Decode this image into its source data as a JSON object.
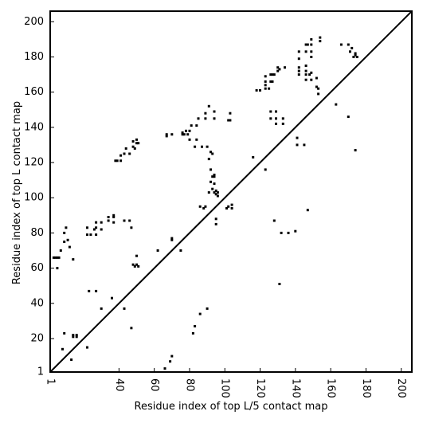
{
  "chart_data": {
    "type": "scatter",
    "xlabel": "Residue index of top L/5 contact map",
    "ylabel": "Residue index of top L contact map",
    "xlim": [
      1,
      206
    ],
    "ylim": [
      1,
      206
    ],
    "xticks": [
      1,
      40,
      60,
      80,
      100,
      120,
      140,
      160,
      180,
      200
    ],
    "yticks": [
      1,
      20,
      40,
      60,
      80,
      100,
      120,
      140,
      160,
      180,
      200
    ],
    "xtick_labels": [
      "1",
      "40",
      "60",
      "80",
      "100",
      "120",
      "140",
      "160",
      "180",
      "200"
    ],
    "ytick_labels": [
      "1",
      "20",
      "40",
      "60",
      "80",
      "100",
      "120",
      "140",
      "160",
      "180",
      "200"
    ],
    "diagonal": true,
    "grid": false,
    "marker_color": "#000000",
    "upper_triangle_points": [
      [
        3,
        66
      ],
      [
        4,
        66
      ],
      [
        5,
        66
      ],
      [
        6,
        66
      ],
      [
        7,
        70
      ],
      [
        9,
        75
      ],
      [
        9,
        80
      ],
      [
        10,
        83
      ],
      [
        11,
        76
      ],
      [
        12,
        72
      ],
      [
        14,
        65
      ],
      [
        22,
        79
      ],
      [
        22,
        83
      ],
      [
        24,
        79
      ],
      [
        26,
        82
      ],
      [
        27,
        83
      ],
      [
        27,
        86
      ],
      [
        27,
        79
      ],
      [
        30,
        86
      ],
      [
        30,
        82
      ],
      [
        34,
        87
      ],
      [
        34,
        89
      ],
      [
        37,
        89
      ],
      [
        37,
        86
      ],
      [
        37,
        90
      ],
      [
        38,
        121
      ],
      [
        39,
        121
      ],
      [
        41,
        121
      ],
      [
        41,
        124
      ],
      [
        43,
        87
      ],
      [
        43,
        125
      ],
      [
        44,
        128
      ],
      [
        46,
        87
      ],
      [
        46,
        125
      ],
      [
        47,
        83
      ],
      [
        48,
        62
      ],
      [
        48,
        129
      ],
      [
        48,
        132
      ],
      [
        49,
        128
      ],
      [
        49,
        61
      ],
      [
        50,
        62
      ],
      [
        50,
        131
      ],
      [
        50,
        133
      ],
      [
        50,
        67
      ],
      [
        51,
        61
      ],
      [
        51,
        131
      ],
      [
        62,
        70
      ],
      [
        67,
        135
      ],
      [
        67,
        136
      ],
      [
        70,
        77
      ],
      [
        70,
        76
      ],
      [
        70,
        136
      ],
      [
        75,
        70
      ],
      [
        76,
        136
      ],
      [
        76,
        137
      ],
      [
        77,
        136
      ],
      [
        78,
        138
      ],
      [
        79,
        136
      ],
      [
        80,
        133
      ],
      [
        80,
        138
      ],
      [
        81,
        141
      ],
      [
        83,
        129
      ],
      [
        84,
        133
      ],
      [
        84,
        141
      ],
      [
        85,
        145
      ],
      [
        86,
        95
      ],
      [
        87,
        129
      ],
      [
        88,
        94
      ],
      [
        89,
        95
      ],
      [
        89,
        145
      ],
      [
        89,
        148
      ],
      [
        90,
        129
      ],
      [
        91,
        122
      ],
      [
        91,
        103
      ],
      [
        91,
        152
      ],
      [
        92,
        109
      ],
      [
        92,
        116
      ],
      [
        92,
        126
      ],
      [
        93,
        112
      ],
      [
        93,
        105
      ],
      [
        93,
        125
      ],
      [
        94,
        103
      ],
      [
        94,
        108
      ],
      [
        94,
        112
      ],
      [
        94,
        113
      ],
      [
        94,
        145
      ],
      [
        94,
        149
      ],
      [
        95,
        104
      ],
      [
        95,
        102
      ],
      [
        95,
        88
      ],
      [
        95,
        85
      ],
      [
        96,
        101
      ],
      [
        96,
        103
      ],
      [
        101,
        94
      ],
      [
        102,
        95
      ],
      [
        102,
        144
      ],
      [
        103,
        144
      ],
      [
        103,
        148
      ],
      [
        104,
        94
      ],
      [
        104,
        96
      ],
      [
        116,
        123
      ],
      [
        118,
        161
      ],
      [
        120,
        161
      ],
      [
        123,
        116
      ],
      [
        123,
        162
      ],
      [
        123,
        164
      ],
      [
        123,
        166
      ],
      [
        123,
        169
      ],
      [
        125,
        162
      ],
      [
        126,
        145
      ],
      [
        126,
        149
      ],
      [
        126,
        166
      ],
      [
        126,
        170
      ],
      [
        127,
        166
      ],
      [
        127,
        170
      ],
      [
        128,
        170
      ],
      [
        128,
        87
      ],
      [
        129,
        142
      ],
      [
        129,
        145
      ],
      [
        129,
        149
      ],
      [
        130,
        172
      ],
      [
        130,
        174
      ],
      [
        131,
        51
      ],
      [
        131,
        173
      ],
      [
        132,
        80
      ],
      [
        133,
        142
      ],
      [
        133,
        145
      ],
      [
        134,
        174
      ],
      [
        136,
        80
      ],
      [
        140,
        81
      ],
      [
        141,
        134
      ],
      [
        141,
        130
      ],
      [
        142,
        170
      ],
      [
        142,
        172
      ],
      [
        142,
        174
      ],
      [
        142,
        179
      ],
      [
        142,
        183
      ],
      [
        145,
        130
      ],
      [
        146,
        167
      ],
      [
        146,
        170
      ],
      [
        146,
        172
      ],
      [
        146,
        175
      ],
      [
        146,
        183
      ],
      [
        146,
        187
      ],
      [
        147,
        93
      ],
      [
        147,
        187
      ],
      [
        148,
        170
      ],
      [
        149,
        167
      ],
      [
        149,
        171
      ],
      [
        149,
        180
      ],
      [
        149,
        183
      ],
      [
        149,
        187
      ],
      [
        149,
        190
      ],
      [
        152,
        168
      ],
      [
        152,
        163
      ],
      [
        153,
        159
      ],
      [
        153,
        162
      ],
      [
        154,
        189
      ],
      [
        154,
        191
      ],
      [
        163,
        153
      ],
      [
        166,
        187
      ],
      [
        170,
        187
      ],
      [
        170,
        146
      ],
      [
        171,
        183
      ],
      [
        172,
        185
      ],
      [
        173,
        180
      ],
      [
        174,
        127
      ],
      [
        174,
        181
      ],
      [
        174,
        182
      ],
      [
        175,
        180
      ]
    ],
    "lower_triangle_points": [
      [
        5,
        60
      ],
      [
        8,
        14
      ],
      [
        9,
        23
      ],
      [
        13,
        8
      ],
      [
        14,
        22
      ],
      [
        14,
        21
      ],
      [
        16,
        22
      ],
      [
        16,
        21
      ],
      [
        22,
        15
      ],
      [
        23,
        47
      ],
      [
        27,
        47
      ],
      [
        30,
        37
      ],
      [
        36,
        43
      ],
      [
        43,
        37
      ],
      [
        47,
        26
      ],
      [
        66,
        3
      ],
      [
        69,
        7
      ],
      [
        70,
        10
      ],
      [
        82,
        23
      ],
      [
        83,
        27
      ],
      [
        86,
        34
      ],
      [
        90,
        37
      ]
    ]
  }
}
